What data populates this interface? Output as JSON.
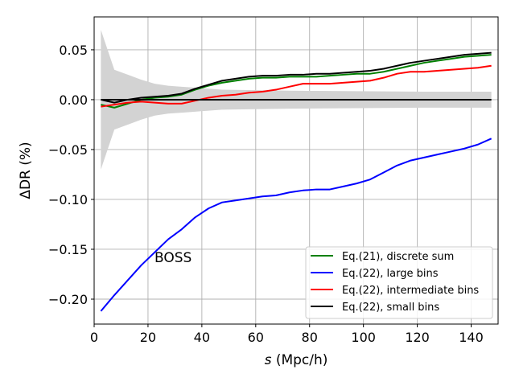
{
  "chart_data": {
    "type": "line",
    "xlabel_italic": "s",
    "xlabel_rest": " (Mpc/h)",
    "ylabel": "ΔDR (%)",
    "xlim": [
      0,
      150
    ],
    "ylim": [
      -0.225,
      0.083
    ],
    "xticks": [
      0,
      20,
      40,
      60,
      80,
      100,
      120,
      140
    ],
    "xtick_labels": [
      "0",
      "20",
      "40",
      "60",
      "80",
      "100",
      "120",
      "140"
    ],
    "yticks": [
      0.05,
      0.0,
      -0.05,
      -0.1,
      -0.15,
      -0.2
    ],
    "ytick_labels": [
      "0.05",
      "0.00",
      "−0.05",
      "−0.10",
      "−0.15",
      "−0.20"
    ],
    "grid": true,
    "legend_position": "lower-right",
    "annotation": "BOSS",
    "band": {
      "color": "#d3d3d3",
      "x": [
        2.5,
        7.5,
        12.5,
        17.5,
        22.5,
        27.5,
        32.5,
        37.5,
        42.5,
        47.5,
        52.5,
        57.5,
        62.5,
        67.5,
        72.5,
        77.5,
        82.5,
        87.5,
        92.5,
        97.5,
        102.5,
        107.5,
        112.5,
        117.5,
        122.5,
        127.5,
        132.5,
        137.5,
        142.5,
        147.5
      ],
      "upper": [
        0.07,
        0.03,
        0.025,
        0.02,
        0.016,
        0.014,
        0.013,
        0.012,
        0.011,
        0.01,
        0.0098,
        0.0096,
        0.0094,
        0.0092,
        0.009,
        0.0089,
        0.0088,
        0.0087,
        0.0086,
        0.0085,
        0.0084,
        0.0083,
        0.0082,
        0.0081,
        0.008,
        0.008,
        0.008,
        0.008,
        0.008,
        0.008
      ],
      "lower": [
        -0.07,
        -0.03,
        -0.025,
        -0.02,
        -0.016,
        -0.014,
        -0.013,
        -0.012,
        -0.011,
        -0.01,
        -0.0098,
        -0.0096,
        -0.0094,
        -0.0092,
        -0.009,
        -0.0089,
        -0.0088,
        -0.0087,
        -0.0086,
        -0.0085,
        -0.0084,
        -0.0083,
        -0.0082,
        -0.0081,
        -0.008,
        -0.008,
        -0.008,
        -0.008,
        -0.008,
        -0.008
      ]
    },
    "x": [
      2.5,
      7.5,
      12.5,
      17.5,
      22.5,
      27.5,
      32.5,
      37.5,
      42.5,
      47.5,
      52.5,
      57.5,
      62.5,
      67.5,
      72.5,
      77.5,
      82.5,
      87.5,
      92.5,
      97.5,
      102.5,
      107.5,
      112.5,
      117.5,
      122.5,
      127.5,
      132.5,
      137.5,
      142.5,
      147.5
    ],
    "series": [
      {
        "name": "Eq.(21), discrete sum",
        "color": "#008000",
        "values": [
          -0.005,
          -0.008,
          -0.004,
          0.0,
          0.002,
          0.003,
          0.005,
          0.01,
          0.014,
          0.017,
          0.019,
          0.021,
          0.022,
          0.022,
          0.023,
          0.023,
          0.023,
          0.024,
          0.025,
          0.026,
          0.026,
          0.028,
          0.031,
          0.034,
          0.037,
          0.039,
          0.041,
          0.043,
          0.044,
          0.045
        ]
      },
      {
        "name": "Eq.(22), large bins",
        "color": "#0000ff",
        "values": [
          -0.212,
          -0.196,
          -0.181,
          -0.166,
          -0.153,
          -0.14,
          -0.13,
          -0.118,
          -0.109,
          -0.103,
          -0.101,
          -0.099,
          -0.097,
          -0.096,
          -0.093,
          -0.091,
          -0.09,
          -0.09,
          -0.087,
          -0.084,
          -0.08,
          -0.073,
          -0.066,
          -0.061,
          -0.058,
          -0.055,
          -0.052,
          -0.049,
          -0.045,
          -0.039
        ]
      },
      {
        "name": "Eq.(22), intermediate bins",
        "color": "#ff0000",
        "values": [
          -0.007,
          -0.005,
          -0.003,
          -0.002,
          -0.003,
          -0.004,
          -0.004,
          -0.001,
          0.002,
          0.004,
          0.005,
          0.007,
          0.008,
          0.01,
          0.013,
          0.016,
          0.016,
          0.016,
          0.017,
          0.018,
          0.019,
          0.022,
          0.026,
          0.028,
          0.028,
          0.029,
          0.03,
          0.031,
          0.032,
          0.034
        ]
      },
      {
        "name": "Eq.(22), small bins",
        "color": "#000000",
        "values": [
          0.0,
          -0.003,
          0.0,
          0.002,
          0.003,
          0.004,
          0.006,
          0.011,
          0.015,
          0.019,
          0.021,
          0.023,
          0.024,
          0.024,
          0.025,
          0.025,
          0.026,
          0.026,
          0.027,
          0.028,
          0.029,
          0.031,
          0.034,
          0.037,
          0.039,
          0.041,
          0.043,
          0.045,
          0.046,
          0.047
        ]
      },
      {
        "name": "",
        "color": "#000000",
        "values": [
          0.0,
          0.0,
          0.0,
          0.0,
          0.0,
          0.0,
          0.0,
          0.0,
          0.0,
          0.0,
          0.0,
          0.0,
          0.0,
          0.0,
          0.0,
          0.0,
          0.0,
          0.0,
          0.0,
          0.0,
          0.0,
          0.0,
          0.0,
          0.0,
          0.0,
          0.0,
          0.0,
          0.0,
          0.0,
          0.0
        ]
      }
    ]
  }
}
